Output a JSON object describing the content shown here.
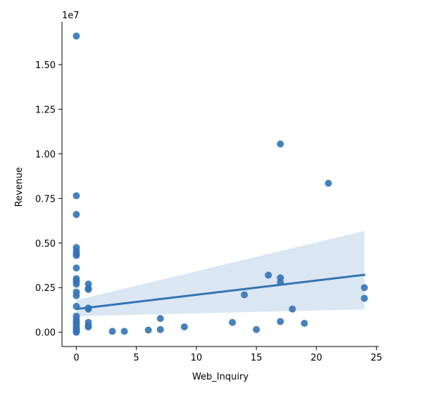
{
  "chart_data": {
    "type": "scatter",
    "title": "",
    "xlabel": "Web_Inquiry",
    "ylabel": "Revenue",
    "y_offset_label": "1e7",
    "xlim": [
      -1.2,
      25.2
    ],
    "ylim": [
      -0.08,
      1.74
    ],
    "y_scale": 10000000,
    "x_ticks": [
      0,
      5,
      10,
      15,
      20,
      25
    ],
    "x_tick_labels": [
      "0",
      "5",
      "10",
      "15",
      "20",
      "25"
    ],
    "y_ticks": [
      0.0,
      0.25,
      0.5,
      0.75,
      1.0,
      1.25,
      1.5
    ],
    "y_tick_labels": [
      "0.00",
      "0.25",
      "0.50",
      "0.75",
      "1.00",
      "1.25",
      "1.50"
    ],
    "grid": false,
    "colors": {
      "points": "#3274b5",
      "line": "#3274b5",
      "band": "#d4e2ef"
    },
    "points": [
      {
        "x": 0,
        "y": 1.66
      },
      {
        "x": 0,
        "y": 0.765
      },
      {
        "x": 0,
        "y": 0.66
      },
      {
        "x": 0,
        "y": 0.475
      },
      {
        "x": 0,
        "y": 0.455
      },
      {
        "x": 0,
        "y": 0.44
      },
      {
        "x": 0,
        "y": 0.43
      },
      {
        "x": 0,
        "y": 0.36
      },
      {
        "x": 0,
        "y": 0.3
      },
      {
        "x": 0,
        "y": 0.285
      },
      {
        "x": 0,
        "y": 0.27
      },
      {
        "x": 0,
        "y": 0.225
      },
      {
        "x": 0,
        "y": 0.205
      },
      {
        "x": 0,
        "y": 0.145
      },
      {
        "x": 0,
        "y": 0.09
      },
      {
        "x": 0,
        "y": 0.07
      },
      {
        "x": 0,
        "y": 0.055
      },
      {
        "x": 0,
        "y": 0.04
      },
      {
        "x": 0,
        "y": 0.025
      },
      {
        "x": 0,
        "y": 0.015
      },
      {
        "x": 0,
        "y": 0.005
      },
      {
        "x": 0,
        "y": 0.0
      },
      {
        "x": 1,
        "y": 0.27
      },
      {
        "x": 1,
        "y": 0.245
      },
      {
        "x": 1,
        "y": 0.24
      },
      {
        "x": 1,
        "y": 0.135
      },
      {
        "x": 1,
        "y": 0.13
      },
      {
        "x": 1,
        "y": 0.055
      },
      {
        "x": 1,
        "y": 0.035
      },
      {
        "x": 1,
        "y": 0.03
      },
      {
        "x": 3,
        "y": 0.005
      },
      {
        "x": 4,
        "y": 0.005
      },
      {
        "x": 6,
        "y": 0.012
      },
      {
        "x": 7,
        "y": 0.077
      },
      {
        "x": 7,
        "y": 0.015
      },
      {
        "x": 9,
        "y": 0.03
      },
      {
        "x": 13,
        "y": 0.055
      },
      {
        "x": 14,
        "y": 0.21
      },
      {
        "x": 15,
        "y": 0.015
      },
      {
        "x": 16,
        "y": 0.32
      },
      {
        "x": 17,
        "y": 1.055
      },
      {
        "x": 17,
        "y": 0.305
      },
      {
        "x": 17,
        "y": 0.28
      },
      {
        "x": 17,
        "y": 0.06
      },
      {
        "x": 18,
        "y": 0.13
      },
      {
        "x": 19,
        "y": 0.05
      },
      {
        "x": 21,
        "y": 0.835
      },
      {
        "x": 24,
        "y": 0.25
      },
      {
        "x": 24,
        "y": 0.19
      }
    ],
    "regression": {
      "x": [
        0,
        24
      ],
      "y": [
        0.13,
        0.322
      ]
    },
    "confidence_band": {
      "x": [
        0,
        24
      ],
      "upper": [
        0.18,
        0.568
      ],
      "lower": [
        0.09,
        0.128
      ]
    }
  }
}
